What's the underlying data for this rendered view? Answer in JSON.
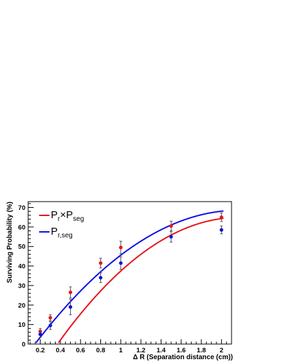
{
  "chart_data": {
    "type": "scatter",
    "xlabel": "Δ R (Separation distance (cm))",
    "ylabel": "Surviving Probability (%)",
    "xlim": [
      0.08,
      2.1
    ],
    "ylim": [
      0,
      73
    ],
    "x_ticks": [
      "0.2",
      "0.4",
      "0.6",
      "0.8",
      "1",
      "1.2",
      "1.4",
      "1.6",
      "1.8",
      "2"
    ],
    "y_ticks": [
      "0",
      "10",
      "20",
      "30",
      "40",
      "50",
      "60",
      "70"
    ],
    "legend_position": "top-left",
    "grid": false,
    "series": [
      {
        "name": "P_r×P_seg",
        "legend_parts": {
          "p1": "P",
          "sub1": "r",
          "op": "×",
          "p2": "P",
          "sub2": "seg"
        },
        "color": "#e8141b",
        "x": [
          0.2,
          0.3,
          0.5,
          0.8,
          1.0,
          1.5,
          2.0
        ],
        "y": [
          6.5,
          13.5,
          26.5,
          41.5,
          49.5,
          60.5,
          65.0
        ],
        "err": [
          1.5,
          1.5,
          2.8,
          2.5,
          3.2,
          2.5,
          2.2
        ],
        "fit": {
          "a": -20.06,
          "b": 87.04,
          "c": -29.56
        }
      },
      {
        "name": "P_r,seg",
        "legend_parts": {
          "p1": "P",
          "sub1": "r,seg"
        },
        "color": "#1010e0",
        "x": [
          0.2,
          0.3,
          0.5,
          0.8,
          1.0,
          1.5,
          2.0
        ],
        "y": [
          5.0,
          9.5,
          19.0,
          34.0,
          41.5,
          55.0,
          58.5
        ],
        "err": [
          1.5,
          2.0,
          4.0,
          2.5,
          3.2,
          2.8,
          2.0
        ],
        "fit": {
          "a": -16.72,
          "b": 72.68,
          "c": -10.4
        }
      }
    ]
  }
}
